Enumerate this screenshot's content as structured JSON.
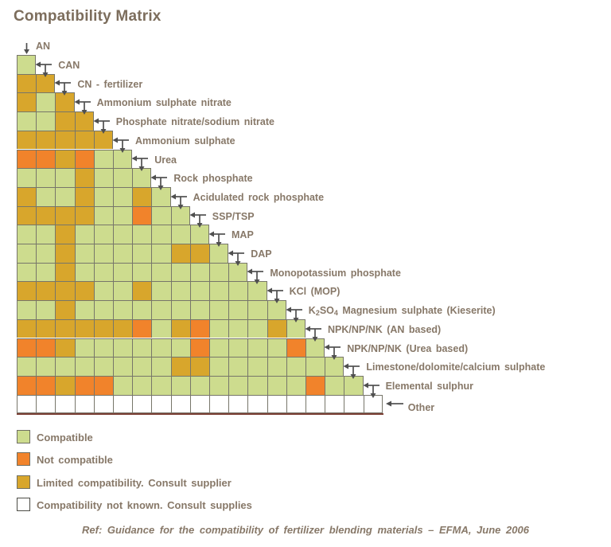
{
  "title": "Compatibility Matrix",
  "footer": "Ref: Guidance for the compatibility of fertilizer blending materials – EFMA, June 2006",
  "colors": {
    "compatible": "#cddc8e",
    "not_compatible": "#f1832b",
    "limited": "#d8a62c",
    "unknown": "#ffffff",
    "grid": "#77766a",
    "arrow": "#4f4f4f",
    "label_text": "#877868",
    "baseline": "#7b4035"
  },
  "legend": [
    {
      "code": "G",
      "label": "Compatible"
    },
    {
      "code": "O",
      "label": "Not compatible"
    },
    {
      "code": "L",
      "label": "Limited compatibility.  Consult supplier"
    },
    {
      "code": "U",
      "label": "Compatibility  not known. Consult supplies"
    }
  ],
  "chart_data": {
    "type": "heatmap",
    "title": "Compatibility Matrix",
    "legend_position": "bottom-left",
    "code_meanings": {
      "G": "Compatible",
      "O": "Not compatible",
      "L": "Limited compatibility. Consult supplier",
      "U": "Compatibility not known. Consult supplies"
    },
    "materials": [
      "AN",
      "CAN",
      "CN - fertilizer",
      "Ammonium sulphate nitrate",
      "Phosphate nitrate/sodium nitrate",
      "Ammonium sulphate",
      "Urea",
      "Rock phosphate",
      "Acidulated rock phosphate",
      "SSP/TSP",
      "MAP",
      "DAP",
      "Monopotassium phosphate",
      "KCl (MOP)",
      "K_2SO_4 Magnesium sulphate (Kieserite)",
      "NPK/NP/NK (AN based)",
      "NPK/NP/NK (Urea based)",
      "Limestone/dolomite/calcium sulphate",
      "Elemental sulphur",
      "Other"
    ],
    "rows": [
      {
        "material": "CAN",
        "cells": [
          "G"
        ]
      },
      {
        "material": "CN - fertilizer",
        "cells": [
          "L",
          "L"
        ]
      },
      {
        "material": "Ammonium sulphate nitrate",
        "cells": [
          "L",
          "G",
          "L"
        ]
      },
      {
        "material": "Phosphate nitrate/sodium nitrate",
        "cells": [
          "G",
          "G",
          "L",
          "L"
        ]
      },
      {
        "material": "Ammonium sulphate",
        "cells": [
          "L",
          "L",
          "L",
          "L",
          "L"
        ]
      },
      {
        "material": "Urea",
        "cells": [
          "O",
          "O",
          "L",
          "O",
          "G",
          "G"
        ]
      },
      {
        "material": "Rock phosphate",
        "cells": [
          "G",
          "G",
          "G",
          "L",
          "G",
          "G",
          "G"
        ]
      },
      {
        "material": "Acidulated rock phosphate",
        "cells": [
          "L",
          "G",
          "G",
          "L",
          "G",
          "G",
          "L",
          "G"
        ]
      },
      {
        "material": "SSP/TSP",
        "cells": [
          "L",
          "L",
          "L",
          "L",
          "G",
          "G",
          "O",
          "G",
          "G"
        ]
      },
      {
        "material": "MAP",
        "cells": [
          "G",
          "G",
          "L",
          "G",
          "G",
          "G",
          "G",
          "G",
          "G",
          "G"
        ]
      },
      {
        "material": "DAP",
        "cells": [
          "G",
          "G",
          "L",
          "G",
          "G",
          "G",
          "G",
          "G",
          "L",
          "L",
          "G"
        ]
      },
      {
        "material": "Monopotassium phosphate",
        "cells": [
          "G",
          "G",
          "L",
          "G",
          "G",
          "G",
          "G",
          "G",
          "G",
          "G",
          "G",
          "G"
        ]
      },
      {
        "material": "KCl (MOP)",
        "cells": [
          "L",
          "L",
          "L",
          "L",
          "G",
          "G",
          "L",
          "G",
          "G",
          "G",
          "G",
          "G",
          "G"
        ]
      },
      {
        "material": "K_2SO_4 Magnesium sulphate (Kieserite)",
        "cells": [
          "G",
          "G",
          "L",
          "G",
          "G",
          "G",
          "G",
          "G",
          "G",
          "G",
          "G",
          "G",
          "G",
          "G"
        ]
      },
      {
        "material": "NPK/NP/NK (AN based)",
        "cells": [
          "L",
          "L",
          "L",
          "L",
          "L",
          "L",
          "O",
          "G",
          "L",
          "O",
          "G",
          "G",
          "G",
          "L",
          "G"
        ]
      },
      {
        "material": "NPK/NP/NK (Urea based)",
        "cells": [
          "O",
          "O",
          "L",
          "G",
          "G",
          "G",
          "G",
          "G",
          "G",
          "O",
          "G",
          "G",
          "G",
          "G",
          "O",
          "G"
        ]
      },
      {
        "material": "Limestone/dolomite/calcium sulphate",
        "cells": [
          "G",
          "G",
          "G",
          "G",
          "G",
          "G",
          "G",
          "G",
          "L",
          "L",
          "G",
          "G",
          "G",
          "G",
          "G",
          "G",
          "G"
        ]
      },
      {
        "material": "Elemental sulphur",
        "cells": [
          "O",
          "O",
          "L",
          "O",
          "O",
          "G",
          "G",
          "G",
          "G",
          "G",
          "G",
          "G",
          "G",
          "G",
          "G",
          "O",
          "G",
          "G"
        ]
      },
      {
        "material": "Other",
        "cells": [
          "U",
          "U",
          "U",
          "U",
          "U",
          "U",
          "U",
          "U",
          "U",
          "U",
          "U",
          "U",
          "U",
          "U",
          "U",
          "U",
          "U",
          "U",
          "U"
        ]
      }
    ]
  }
}
